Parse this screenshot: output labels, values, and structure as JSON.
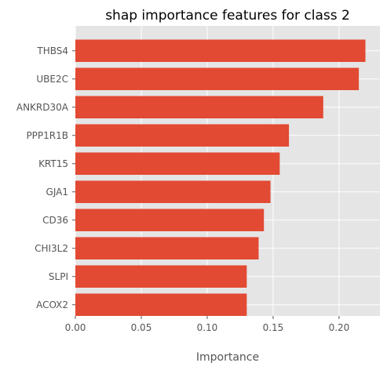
{
  "chart_data": {
    "type": "bar",
    "orientation": "horizontal",
    "title": "shap importance features for class 2",
    "xlabel": "Importance",
    "ylabel": "",
    "categories": [
      "THBS4",
      "UBE2C",
      "ANKRD30A",
      "PPP1R1B",
      "KRT15",
      "GJA1",
      "CD36",
      "CHI3L2",
      "SLPI",
      "ACOX2"
    ],
    "values": [
      0.22,
      0.215,
      0.188,
      0.162,
      0.155,
      0.148,
      0.143,
      0.139,
      0.13,
      0.13
    ],
    "xlim": [
      0,
      0.231
    ],
    "xticks": [
      "0.00",
      "0.05",
      "0.10",
      "0.15",
      "0.20"
    ],
    "xtick_values": [
      0,
      0.05,
      0.1,
      0.15,
      0.2
    ],
    "grid": true,
    "legend": "none",
    "colors": {
      "bar": "#E24A33",
      "plot_background": "#E5E5E5",
      "grid": "#FFFFFF"
    }
  }
}
